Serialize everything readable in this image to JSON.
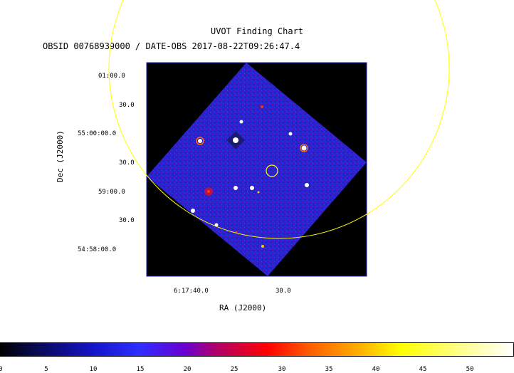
{
  "title": "UVOT Finding Chart",
  "subtitle": "OBSID 00768939000 / DATE-OBS 2017-08-22T09:26:47.4",
  "dec_axis_label": "Dec (J2000)",
  "ra_axis_label": "RA (J2000)",
  "dec_ticks": [
    "01:00.0",
    "30.0",
    "55:00:00.0",
    "30.0",
    "59:00.0",
    "30.0",
    "54:58:00.0"
  ],
  "ra_ticks": [
    "6:17:40.0",
    "30.0"
  ],
  "colorbar_ticks": [
    "0",
    "5",
    "10",
    "15",
    "20",
    "25",
    "30",
    "35",
    "40",
    "45",
    "50"
  ],
  "colors": {
    "field_circle": "#ffff00",
    "target_circle": "#ffff00",
    "background": "#000000",
    "image_blue": "#2a2ad8"
  }
}
